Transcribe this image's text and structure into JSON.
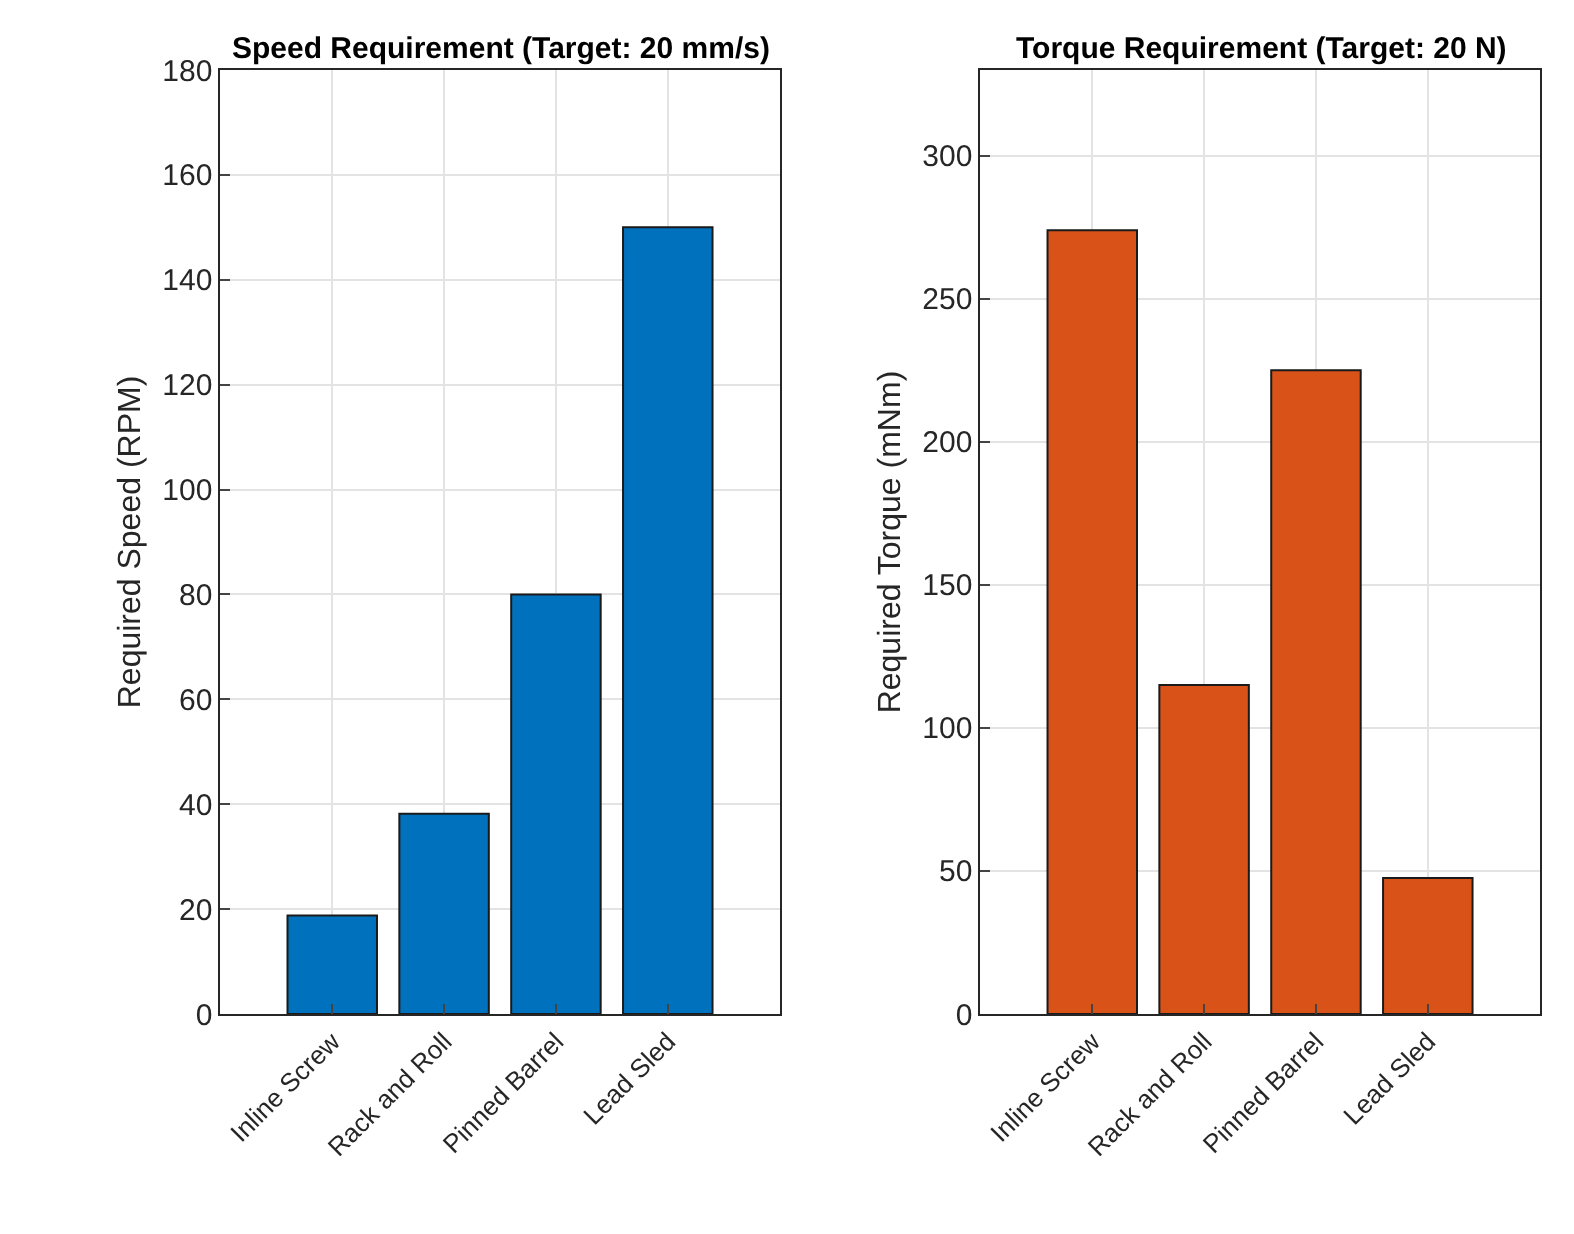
{
  "chart_data": [
    {
      "type": "bar",
      "title": "Speed Requirement (Target: 20 mm/s)",
      "ylabel": "Required Speed (RPM)",
      "categories": [
        "Inline Screw",
        "Rack and Roll",
        "Pinned Barrel",
        "Lead Sled"
      ],
      "values": [
        18.8,
        38.2,
        80,
        150
      ],
      "color": "#0072bd",
      "ylim": [
        0,
        180
      ],
      "yticks": [
        0,
        20,
        40,
        60,
        80,
        100,
        120,
        140,
        160,
        180
      ],
      "grid": true
    },
    {
      "type": "bar",
      "title": "Torque Requirement (Target: 20 N)",
      "ylabel": "Required Torque (mNm)",
      "categories": [
        "Inline Screw",
        "Rack and Roll",
        "Pinned Barrel",
        "Lead Sled"
      ],
      "values": [
        274,
        115,
        225,
        47.5
      ],
      "color": "#d95319",
      "ylim": [
        0,
        330
      ],
      "yticks": [
        0,
        50,
        100,
        150,
        200,
        250,
        300
      ],
      "grid": true
    }
  ]
}
